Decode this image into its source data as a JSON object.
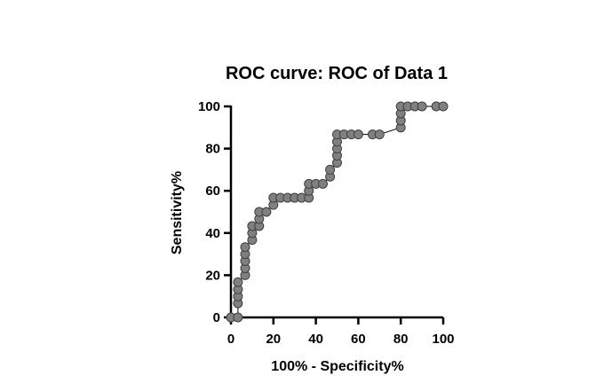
{
  "chart_data": {
    "type": "line",
    "title": "ROC curve: ROC of Data 1",
    "xlabel": "100% - Specificity%",
    "ylabel": "Sensitivity%",
    "xlim": [
      0,
      100
    ],
    "ylim": [
      0,
      100
    ],
    "xticks": [
      0,
      20,
      40,
      60,
      80,
      100
    ],
    "yticks": [
      0,
      20,
      40,
      60,
      80,
      100
    ],
    "grid": false,
    "legend": "none",
    "colors": {
      "marker_fill": "#808080",
      "marker_stroke": "#404040",
      "line": "#000000",
      "axis": "#000000"
    },
    "series": [
      {
        "points": [
          [
            0,
            0
          ],
          [
            3.3,
            0
          ],
          [
            3.3,
            6.7
          ],
          [
            3.3,
            10
          ],
          [
            3.3,
            13.3
          ],
          [
            3.3,
            16.7
          ],
          [
            6.7,
            20
          ],
          [
            6.7,
            23.3
          ],
          [
            6.7,
            26.7
          ],
          [
            6.7,
            30
          ],
          [
            6.7,
            33.3
          ],
          [
            10,
            36.7
          ],
          [
            10,
            40
          ],
          [
            10,
            43.3
          ],
          [
            13.3,
            43.3
          ],
          [
            13.3,
            46.7
          ],
          [
            13.3,
            50
          ],
          [
            16.7,
            50
          ],
          [
            20,
            53.3
          ],
          [
            20,
            56.7
          ],
          [
            23.3,
            56.7
          ],
          [
            26.7,
            56.7
          ],
          [
            30,
            56.7
          ],
          [
            33.3,
            56.7
          ],
          [
            36.7,
            56.7
          ],
          [
            36.7,
            60
          ],
          [
            36.7,
            63.3
          ],
          [
            40,
            63.3
          ],
          [
            43.3,
            63.3
          ],
          [
            46.7,
            66.7
          ],
          [
            46.7,
            70
          ],
          [
            50,
            73.3
          ],
          [
            50,
            76.7
          ],
          [
            50,
            80
          ],
          [
            50,
            83.3
          ],
          [
            50,
            86.7
          ],
          [
            53.3,
            86.7
          ],
          [
            56.7,
            86.7
          ],
          [
            60,
            86.7
          ],
          [
            66.7,
            86.7
          ],
          [
            70,
            86.7
          ],
          [
            80,
            90
          ],
          [
            80,
            93.3
          ],
          [
            80,
            96.7
          ],
          [
            80,
            100
          ],
          [
            83.3,
            100
          ],
          [
            86.7,
            100
          ],
          [
            90,
            100
          ],
          [
            96.7,
            100
          ],
          [
            100,
            100
          ]
        ]
      }
    ]
  }
}
